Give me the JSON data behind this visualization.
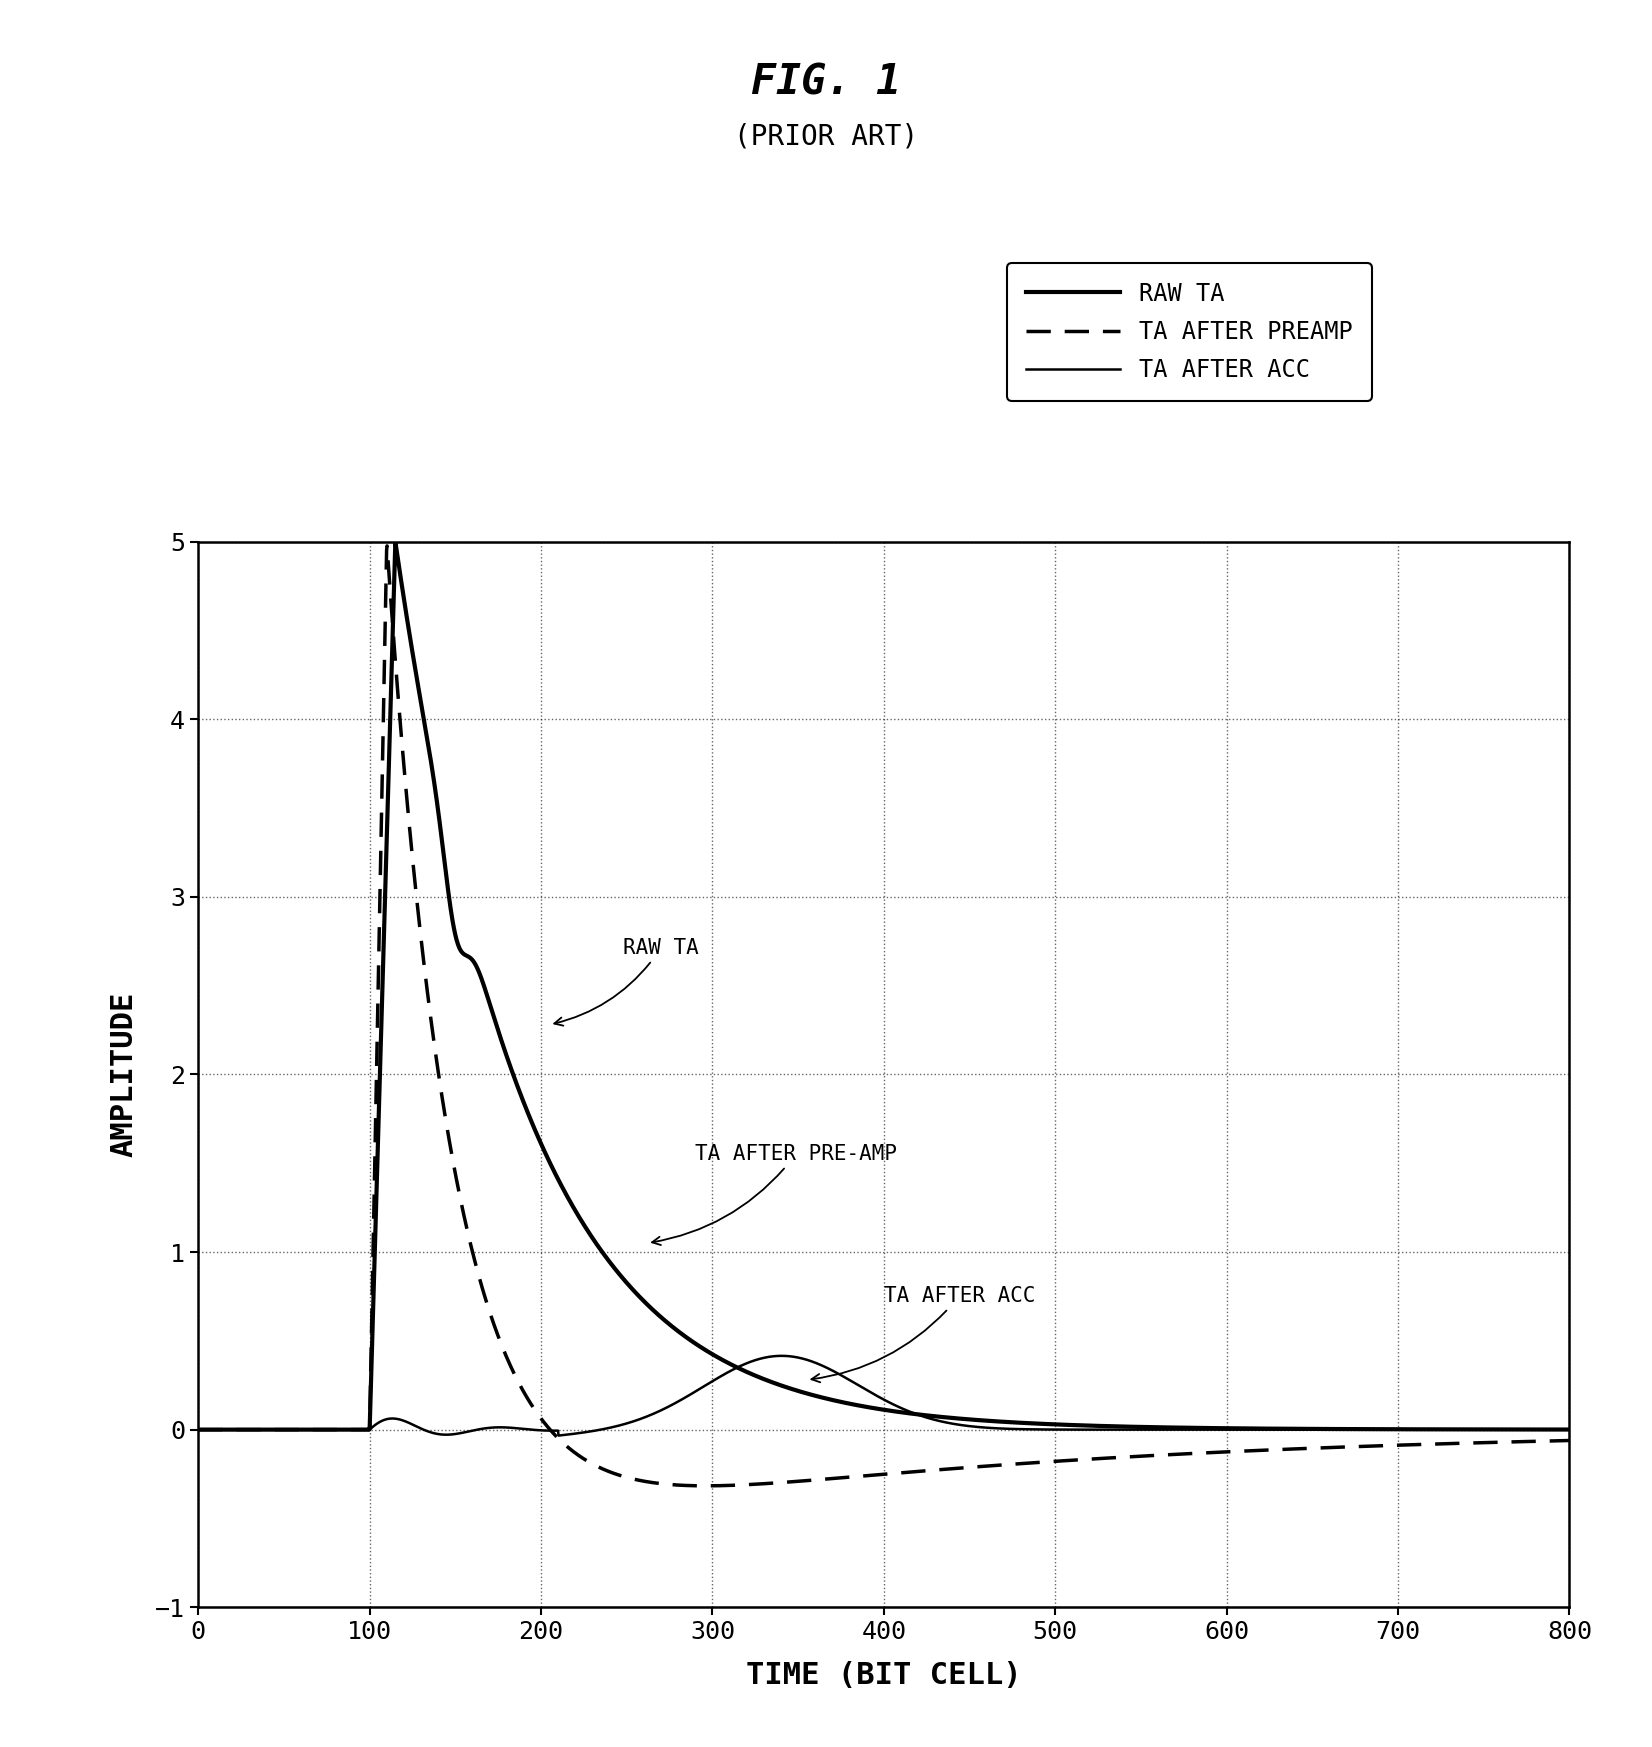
{
  "title": "FIG. 1",
  "subtitle": "(PRIOR ART)",
  "xlabel": "TIME (BIT CELL)",
  "ylabel": "AMPLITUDE",
  "xlim": [
    0,
    800
  ],
  "ylim": [
    -1,
    5
  ],
  "xticks": [
    0,
    100,
    200,
    300,
    400,
    500,
    600,
    700,
    800
  ],
  "yticks": [
    -1,
    0,
    1,
    2,
    3,
    4,
    5
  ],
  "legend_entries": [
    "RAW TA",
    "TA AFTER PREAMP",
    "TA AFTER ACC"
  ],
  "background_color": "#ffffff",
  "line_color": "#000000",
  "raw_ta_lw": 3.0,
  "preamp_lw": 2.5,
  "acc_lw": 1.8,
  "title_fontsize": 30,
  "subtitle_fontsize": 20,
  "label_fontsize": 22,
  "tick_fontsize": 18,
  "legend_fontsize": 17,
  "annot_fontsize": 15
}
